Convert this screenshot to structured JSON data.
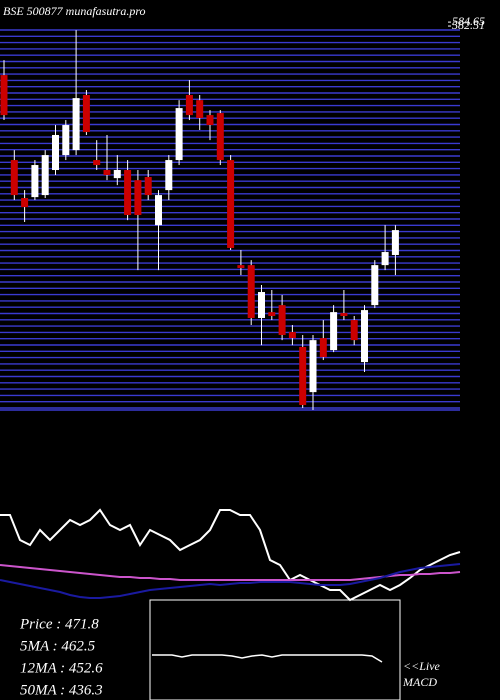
{
  "chart_data": [
    {
      "type": "candlestick",
      "title": "BSE 500877 munafasutra.pro",
      "ylim": [
        374.2,
        584.7
      ],
      "yticks": [
        582.51,
        584.65
      ],
      "up_color": "#ffffff",
      "down_color": "#cc0000",
      "open": [
        555.9,
        509.8,
        489.2,
        489.7,
        490.8,
        504.4,
        512.5,
        515.2,
        545.1,
        509.8,
        504.4,
        500.0,
        504.4,
        498.9,
        500.6,
        474.5,
        493.5,
        509.8,
        545.1,
        542.3,
        534.2,
        535.3,
        509.8,
        452.8,
        452.8,
        424.1,
        427.3,
        431.1,
        416.5,
        408.4,
        383.9,
        413.2,
        406.7,
        426.8,
        423.0,
        400.2,
        431.1,
        452.8,
        458.3
      ],
      "high": [
        564.0,
        515.2,
        493.5,
        509.8,
        515.2,
        528.8,
        531.5,
        580.3,
        547.8,
        520.6,
        523.4,
        512.5,
        509.8,
        504.4,
        504.4,
        493.5,
        512.5,
        542.3,
        553.2,
        545.1,
        536.9,
        536.9,
        512.5,
        461.0,
        455.5,
        442.0,
        439.3,
        436.6,
        420.3,
        414.9,
        414.9,
        423.0,
        431.1,
        439.3,
        425.2,
        431.1,
        455.5,
        474.5,
        474.5
      ],
      "low": [
        531.5,
        488.1,
        476.2,
        488.1,
        489.2,
        501.7,
        509.8,
        512.5,
        523.4,
        504.4,
        498.9,
        496.2,
        477.2,
        450.1,
        488.1,
        450.1,
        488.1,
        507.1,
        531.5,
        526.1,
        520.6,
        507.1,
        461.0,
        447.4,
        420.3,
        409.4,
        423.0,
        412.1,
        409.4,
        375.3,
        374.2,
        401.3,
        405.6,
        423.0,
        409.4,
        394.8,
        429.5,
        450.1,
        447.4
      ],
      "close": [
        534.2,
        490.8,
        484.3,
        507.1,
        512.5,
        523.4,
        528.8,
        543.4,
        525.0,
        507.1,
        501.7,
        504.4,
        480.0,
        480.0,
        490.8,
        490.8,
        509.8,
        538.0,
        534.2,
        532.6,
        528.8,
        509.8,
        462.1,
        451.2,
        424.1,
        438.2,
        425.2,
        414.9,
        413.2,
        376.9,
        412.1,
        402.9,
        427.3,
        425.2,
        412.1,
        428.4,
        452.8,
        459.9,
        471.8
      ]
    },
    {
      "type": "line",
      "ylim": [
        0,
        100
      ],
      "stats": [
        "Price   : 471.8",
        "5MA : 462.5",
        "12MA : 452.6",
        "50MA : 436.3"
      ],
      "series": [
        {
          "color": "#ffffff",
          "values": [
            85,
            85,
            60,
            55,
            70,
            60,
            70,
            80,
            75,
            80,
            90,
            75,
            70,
            75,
            55,
            70,
            65,
            60,
            50,
            55,
            60,
            70,
            90,
            90,
            85,
            85,
            70,
            40,
            35,
            20,
            25,
            20,
            15,
            10,
            10,
            0,
            5,
            10,
            15,
            10,
            15,
            22,
            30,
            35,
            40,
            45,
            48
          ]
        },
        {
          "color": "#cc55cc",
          "values": [
            35,
            34,
            33,
            32,
            31,
            30,
            29,
            28,
            27,
            26,
            25,
            24,
            23,
            23,
            22,
            22,
            21,
            21,
            20,
            20,
            20,
            20,
            20,
            20,
            20,
            20,
            20,
            20,
            20,
            20,
            20,
            20,
            20,
            20,
            20,
            20,
            21,
            22,
            23,
            24,
            25,
            25,
            26,
            26,
            27,
            27,
            28
          ]
        },
        {
          "color": "#1a1aa0",
          "values": [
            20,
            18,
            16,
            14,
            12,
            10,
            8,
            5,
            3,
            2,
            2,
            3,
            4,
            6,
            8,
            10,
            11,
            12,
            13,
            14,
            15,
            16,
            15,
            16,
            17,
            17,
            18,
            18,
            18,
            18,
            17,
            16,
            15,
            15,
            15,
            16,
            18,
            20,
            22,
            25,
            28,
            30,
            32,
            33,
            34,
            35,
            36
          ]
        }
      ]
    },
    {
      "type": "macd",
      "ylim": [
        0,
        100
      ],
      "label_lines": [
        "<<Live",
        "MACD"
      ],
      "series": [
        {
          "color": "#ffffff",
          "values": [
            45,
            45,
            45,
            43,
            45,
            45,
            45,
            45,
            44,
            42,
            44,
            45,
            43,
            45,
            45,
            45,
            45,
            45,
            45,
            45,
            45,
            45,
            44,
            38
          ]
        }
      ]
    }
  ]
}
